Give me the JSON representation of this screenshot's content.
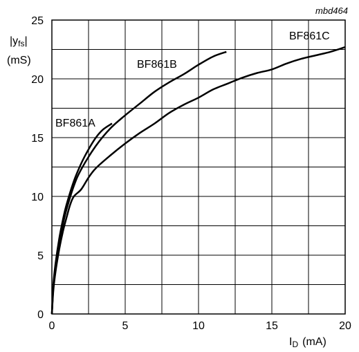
{
  "chart_data": {
    "type": "line",
    "figure_code": "mbd464",
    "ylabel": {
      "main": "|y",
      "sub": "fs",
      "end": "|",
      "unit": "(mS)"
    },
    "xlabel": {
      "main": "I",
      "sub": "D",
      "unit": "(mA)"
    },
    "xlim": [
      0,
      20
    ],
    "ylim": [
      0,
      25
    ],
    "x_ticks": [
      0,
      5,
      10,
      15,
      20
    ],
    "y_ticks": [
      0,
      5,
      10,
      15,
      20,
      25
    ],
    "x_grid_step": 2.5,
    "y_grid_step": 2.5,
    "grid": true,
    "series": [
      {
        "name": "BF861A",
        "x": [
          0,
          0.1,
          0.25,
          0.5,
          0.75,
          1.0,
          1.5,
          2.0,
          2.5,
          3.0,
          3.5,
          4.1
        ],
        "y": [
          0,
          2.5,
          4.3,
          6.4,
          8.0,
          9.3,
          11.3,
          12.8,
          14.0,
          15.0,
          15.7,
          16.2
        ]
      },
      {
        "name": "BF861B",
        "x": [
          0,
          0.1,
          0.25,
          0.5,
          0.75,
          1.0,
          1.5,
          2.0,
          3.0,
          4.0,
          5.0,
          6.0,
          7.0,
          8.0,
          9.0,
          10.0,
          11.0,
          11.9
        ],
        "y": [
          0,
          2.3,
          4.0,
          6.0,
          7.6,
          8.9,
          10.9,
          12.3,
          14.3,
          15.8,
          16.9,
          17.9,
          18.9,
          19.7,
          20.4,
          21.2,
          21.9,
          22.3
        ]
      },
      {
        "name": "BF861C",
        "x": [
          0,
          0.1,
          0.25,
          0.5,
          0.75,
          1.0,
          1.25,
          1.5,
          2.0,
          2.5,
          3.0,
          4.0,
          5.0,
          6.0,
          7.0,
          8.0,
          9.0,
          10.0,
          11.0,
          12.0,
          13.0,
          14.0,
          15.0,
          16.0,
          17.0,
          18.0,
          19.0,
          20.0
        ],
        "y": [
          0,
          2.0,
          3.6,
          5.5,
          7.0,
          8.2,
          9.3,
          10.0,
          10.6,
          11.6,
          12.4,
          13.5,
          14.5,
          15.4,
          16.2,
          17.1,
          17.8,
          18.4,
          19.1,
          19.6,
          20.1,
          20.5,
          20.8,
          21.3,
          21.7,
          22.0,
          22.3,
          22.7
        ]
      }
    ]
  }
}
